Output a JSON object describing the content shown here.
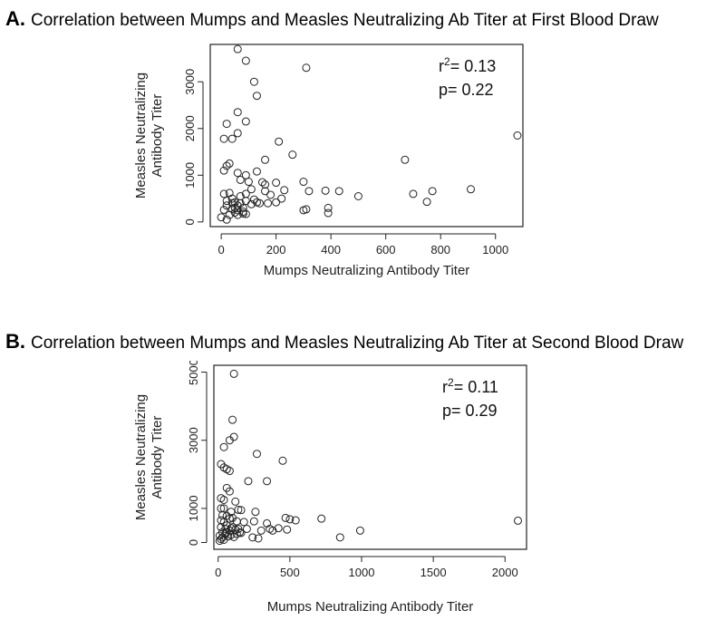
{
  "chart_data": [
    {
      "type": "scatter",
      "panel_letter": "A.",
      "title": "Correlation between Mumps and Measles Neutralizing Ab Titer at First Blood Draw",
      "xlabel": "Mumps Neutralizing Antibody Titer",
      "ylabel": [
        "Measles Neutralizing",
        "Antibody Titer"
      ],
      "xlim": [
        -40,
        1100
      ],
      "ylim": [
        -100,
        3800
      ],
      "xticks": [
        0,
        200,
        400,
        600,
        800,
        1000
      ],
      "yticks": [
        0,
        1000,
        2000,
        3000
      ],
      "stats": {
        "r2_label": "r",
        "r2_exp": "2",
        "r2_text": "= 0.13",
        "p_text": "p= 0.22"
      },
      "legend": "top-right",
      "points": [
        [
          60,
          3700
        ],
        [
          90,
          3450
        ],
        [
          310,
          3300
        ],
        [
          120,
          3000
        ],
        [
          130,
          2700
        ],
        [
          60,
          2350
        ],
        [
          90,
          2150
        ],
        [
          20,
          2100
        ],
        [
          60,
          1900
        ],
        [
          10,
          1780
        ],
        [
          40,
          1780
        ],
        [
          210,
          1720
        ],
        [
          1080,
          1850
        ],
        [
          670,
          1330
        ],
        [
          160,
          1330
        ],
        [
          260,
          1440
        ],
        [
          130,
          1080
        ],
        [
          10,
          1100
        ],
        [
          30,
          1250
        ],
        [
          20,
          1200
        ],
        [
          60,
          1050
        ],
        [
          90,
          1000
        ],
        [
          70,
          900
        ],
        [
          100,
          860
        ],
        [
          150,
          850
        ],
        [
          160,
          800
        ],
        [
          200,
          840
        ],
        [
          300,
          860
        ],
        [
          30,
          620
        ],
        [
          10,
          600
        ],
        [
          40,
          500
        ],
        [
          70,
          550
        ],
        [
          90,
          600
        ],
        [
          110,
          700
        ],
        [
          160,
          660
        ],
        [
          180,
          580
        ],
        [
          230,
          680
        ],
        [
          320,
          660
        ],
        [
          380,
          670
        ],
        [
          430,
          660
        ],
        [
          500,
          550
        ],
        [
          700,
          600
        ],
        [
          750,
          430
        ],
        [
          770,
          660
        ],
        [
          910,
          700
        ],
        [
          20,
          350
        ],
        [
          40,
          400
        ],
        [
          50,
          300
        ],
        [
          60,
          250
        ],
        [
          70,
          400
        ],
        [
          80,
          300
        ],
        [
          90,
          450
        ],
        [
          110,
          380
        ],
        [
          130,
          420
        ],
        [
          140,
          400
        ],
        [
          170,
          400
        ],
        [
          200,
          420
        ],
        [
          220,
          500
        ],
        [
          300,
          250
        ],
        [
          310,
          270
        ],
        [
          390,
          300
        ],
        [
          390,
          190
        ],
        [
          0,
          100
        ],
        [
          20,
          50
        ],
        [
          30,
          150
        ],
        [
          50,
          200
        ],
        [
          60,
          150
        ],
        [
          80,
          180
        ],
        [
          40,
          280
        ],
        [
          10,
          260
        ],
        [
          60,
          350
        ],
        [
          90,
          170
        ],
        [
          20,
          450
        ],
        [
          120,
          480
        ],
        [
          50,
          420
        ],
        [
          80,
          220
        ]
      ]
    },
    {
      "type": "scatter",
      "panel_letter": "B.",
      "title": "Correlation between Mumps and Measles Neutralizing Ab Titer at Second Blood Draw",
      "xlabel": "Mumps Neutralizing Antibody Titer",
      "ylabel": [
        "Measles Neutralizing",
        "Antibody Titer"
      ],
      "xlim": [
        -30,
        2150
      ],
      "ylim": [
        -200,
        5200
      ],
      "xticks": [
        0,
        500,
        1000,
        1500,
        2000
      ],
      "yticks": [
        0,
        1000,
        3000,
        5000
      ],
      "stats": {
        "r2_label": "r",
        "r2_exp": "2",
        "r2_text": "= 0.11",
        "p_text": "p= 0.29"
      },
      "legend": "top-right",
      "points": [
        [
          110,
          4950
        ],
        [
          100,
          3600
        ],
        [
          110,
          3100
        ],
        [
          80,
          3000
        ],
        [
          40,
          2800
        ],
        [
          450,
          2400
        ],
        [
          270,
          2600
        ],
        [
          20,
          2300
        ],
        [
          40,
          2200
        ],
        [
          60,
          2150
        ],
        [
          80,
          2100
        ],
        [
          340,
          1800
        ],
        [
          210,
          1800
        ],
        [
          60,
          1600
        ],
        [
          80,
          1500
        ],
        [
          20,
          1300
        ],
        [
          40,
          1250
        ],
        [
          120,
          1200
        ],
        [
          20,
          1000
        ],
        [
          40,
          1000
        ],
        [
          140,
          960
        ],
        [
          160,
          950
        ],
        [
          90,
          900
        ],
        [
          260,
          900
        ],
        [
          30,
          800
        ],
        [
          60,
          780
        ],
        [
          20,
          650
        ],
        [
          40,
          600
        ],
        [
          80,
          700
        ],
        [
          100,
          720
        ],
        [
          130,
          620
        ],
        [
          180,
          600
        ],
        [
          250,
          620
        ],
        [
          340,
          560
        ],
        [
          470,
          720
        ],
        [
          500,
          680
        ],
        [
          540,
          650
        ],
        [
          720,
          700
        ],
        [
          2090,
          640
        ],
        [
          20,
          450
        ],
        [
          50,
          400
        ],
        [
          60,
          300
        ],
        [
          90,
          420
        ],
        [
          120,
          380
        ],
        [
          150,
          300
        ],
        [
          200,
          400
        ],
        [
          300,
          350
        ],
        [
          380,
          350
        ],
        [
          480,
          380
        ],
        [
          990,
          350
        ],
        [
          10,
          200
        ],
        [
          20,
          100
        ],
        [
          30,
          150
        ],
        [
          40,
          80
        ],
        [
          50,
          250
        ],
        [
          70,
          180
        ],
        [
          90,
          220
        ],
        [
          110,
          160
        ],
        [
          130,
          250
        ],
        [
          160,
          280
        ],
        [
          240,
          150
        ],
        [
          280,
          120
        ],
        [
          850,
          150
        ],
        [
          10,
          50
        ],
        [
          30,
          300
        ],
        [
          60,
          500
        ],
        [
          80,
          350
        ],
        [
          100,
          450
        ],
        [
          140,
          400
        ],
        [
          360,
          400
        ],
        [
          420,
          420
        ]
      ]
    }
  ]
}
